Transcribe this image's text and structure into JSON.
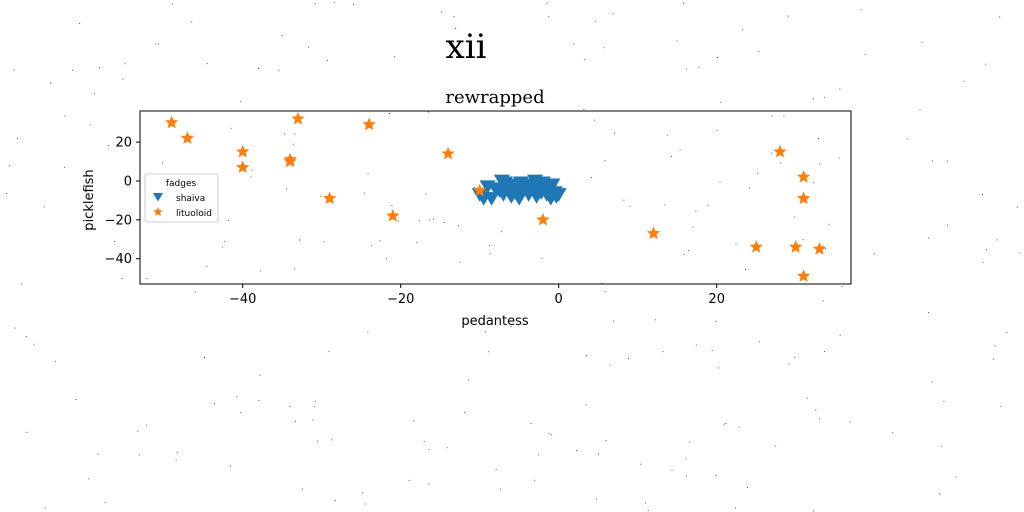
{
  "figure": {
    "suptitle": "xii"
  },
  "chart_data": {
    "type": "scatter",
    "title": "rewrapped",
    "xlabel": "pedantess",
    "ylabel": "picklefish",
    "xlim": [
      -53,
      37
    ],
    "ylim": [
      -53,
      36
    ],
    "xticks": [
      -40,
      -20,
      0,
      20
    ],
    "yticks": [
      20,
      0,
      -20,
      -40
    ],
    "grid": false,
    "legend": {
      "title": "fadges",
      "placement": "center-left"
    },
    "series": [
      {
        "name": "shaiva",
        "marker": "triangle-down",
        "color": "#1f77b4",
        "points": [
          [
            -10,
            -7
          ],
          [
            -9.5,
            -9
          ],
          [
            -9,
            -3
          ],
          [
            -8.5,
            -9
          ],
          [
            -8,
            -4
          ],
          [
            -7.5,
            -5
          ],
          [
            -7.2,
            0
          ],
          [
            -7,
            -7
          ],
          [
            -6.8,
            -1
          ],
          [
            -6.5,
            -3
          ],
          [
            -6.2,
            -2
          ],
          [
            -6,
            -8
          ],
          [
            -5.5,
            -6
          ],
          [
            -5.2,
            -4
          ],
          [
            -5,
            -9
          ],
          [
            -4.8,
            -1
          ],
          [
            -4.5,
            -5
          ],
          [
            -4,
            -3
          ],
          [
            -3.8,
            -7
          ],
          [
            -3.5,
            -2
          ],
          [
            -3.2,
            -5
          ],
          [
            -3,
            0
          ],
          [
            -2.8,
            -8
          ],
          [
            -2.5,
            -4
          ],
          [
            -2.2,
            -6
          ],
          [
            -2,
            -1
          ],
          [
            -1.8,
            -3
          ],
          [
            -1.5,
            -7
          ],
          [
            -1.2,
            -5
          ],
          [
            -1,
            -9
          ],
          [
            -0.8,
            -2
          ],
          [
            -0.5,
            -6
          ],
          [
            -0.3,
            -8
          ],
          [
            0,
            -7
          ]
        ]
      },
      {
        "name": "lituoloid",
        "marker": "star",
        "color": "#ff7f0e",
        "points": [
          [
            -49,
            30
          ],
          [
            -47,
            22
          ],
          [
            -33,
            32
          ],
          [
            -24,
            29
          ],
          [
            -40,
            15
          ],
          [
            -40,
            7
          ],
          [
            -34,
            11
          ],
          [
            -34,
            10
          ],
          [
            -29,
            -9
          ],
          [
            -21,
            -18
          ],
          [
            -14,
            14
          ],
          [
            -10,
            -5
          ],
          [
            -2,
            -20
          ],
          [
            12,
            -27
          ],
          [
            25,
            -34
          ],
          [
            28,
            15
          ],
          [
            30,
            -34
          ],
          [
            31,
            2
          ],
          [
            31,
            -9
          ],
          [
            31,
            -49
          ],
          [
            33,
            -35
          ]
        ]
      }
    ]
  }
}
